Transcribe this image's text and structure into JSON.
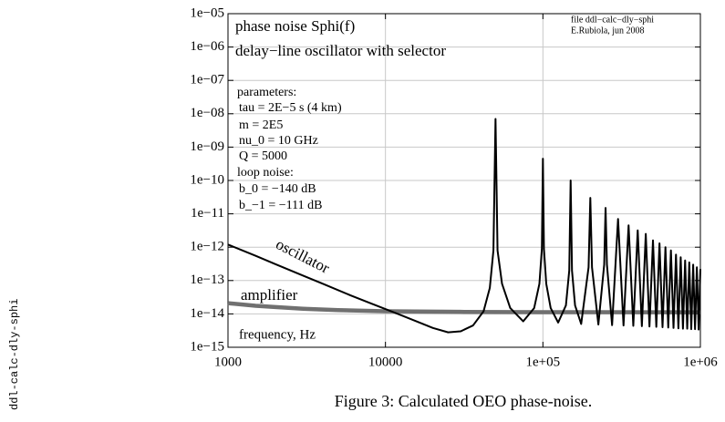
{
  "chart_data": {
    "type": "line",
    "xlog": true,
    "ylog": true,
    "grid": true,
    "xlim": [
      1000,
      1000000
    ],
    "ylim": [
      1e-15,
      1e-05
    ],
    "xticks": [
      1000,
      10000,
      {
        "value": 100000,
        "label": "1e+05"
      },
      {
        "value": 1000000,
        "label": "1e+06"
      }
    ],
    "yticks": [
      {
        "value": 1e-15,
        "label": "1e−15"
      },
      {
        "value": 1e-14,
        "label": "1e−14"
      },
      {
        "value": 1e-13,
        "label": "1e−13"
      },
      {
        "value": 1e-12,
        "label": "1e−12"
      },
      {
        "value": 1e-11,
        "label": "1e−11"
      },
      {
        "value": 1e-10,
        "label": "1e−10"
      },
      {
        "value": 1e-09,
        "label": "1e−09"
      },
      {
        "value": 1e-08,
        "label": "1e−08"
      },
      {
        "value": 1e-07,
        "label": "1e−07"
      },
      {
        "value": 1e-06,
        "label": "1e−06"
      },
      {
        "value": 1e-05,
        "label": "1e−05"
      }
    ],
    "annotations": [
      "phase noise   Sphi(f)",
      "delay−line oscillator with selector",
      "file ddl−calc−dly−sphi",
      "E.Rubiola, jun 2008",
      "parameters:",
      "tau = 2E−5 s (4 km)",
      "m = 2E5",
      "nu_0 = 10 GHz",
      "Q = 5000",
      "loop noise:",
      "b_0 = −140 dB",
      "b_−1 = −111 dB",
      "frequency, Hz"
    ],
    "caption": "Figure 3: Calculated OEO phase-noise.",
    "side_label": "ddl-calc-dly-sphi",
    "series": [
      {
        "name": "oscillator",
        "color": "#000000",
        "x": [
          1000,
          1500,
          2000,
          3000,
          4000,
          6000,
          8000,
          12000,
          16000,
          20000,
          25000,
          30000,
          36000,
          42000,
          46000,
          48500,
          50000,
          51500,
          55000,
          62000,
          75000,
          88000,
          95000,
          98500,
          100000,
          101500,
          105000,
          112000,
          125000,
          140000,
          147000,
          150000,
          153000,
          160000,
          175000,
          195000,
          200000,
          205000,
          225000,
          245000,
          250000,
          255000,
          275000,
          300000,
          325000,
          350000,
          375000,
          400000,
          425000,
          450000,
          475000,
          500000,
          525000,
          550000,
          575000,
          600000,
          625000,
          650000,
          675000,
          700000,
          725000,
          750000,
          775000,
          800000,
          825000,
          850000,
          875000,
          900000,
          925000,
          950000,
          975000,
          1000000
        ],
        "values": [
          1.2e-12,
          5.5e-13,
          3.1e-13,
          1.4e-13,
          8e-14,
          3.6e-14,
          2.1e-14,
          1e-14,
          5.8e-15,
          3.8e-15,
          2.8e-15,
          3e-15,
          4.5e-15,
          1.2e-14,
          6e-14,
          8e-13,
          7e-09,
          8e-13,
          8e-14,
          1.5e-14,
          6e-15,
          1.5e-14,
          8e-14,
          9e-13,
          4.5e-10,
          9e-13,
          8e-14,
          1.5e-14,
          5.5e-15,
          1.8e-14,
          2e-13,
          1e-10,
          2e-13,
          1.8e-14,
          5e-15,
          2.5e-13,
          3e-11,
          2.5e-13,
          4.8e-15,
          3e-13,
          1.5e-11,
          3e-13,
          4.6e-15,
          7e-12,
          4.5e-15,
          4.5e-12,
          4.4e-15,
          3.2e-12,
          4.3e-15,
          2.5e-12,
          4.2e-15,
          1.6e-12,
          4.1e-15,
          1.3e-12,
          4e-15,
          1e-12,
          3.9e-15,
          8e-13,
          3.8e-15,
          6e-13,
          3.7e-15,
          5e-13,
          3.6e-15,
          4e-13,
          3.6e-15,
          3.5e-13,
          3.5e-15,
          3e-13,
          3.5e-15,
          2.5e-13,
          3.4e-15,
          2.2e-13
        ]
      },
      {
        "name": "amplifier",
        "color": "#707070",
        "x": [
          1000,
          1500,
          2000,
          3000,
          5000,
          10000,
          30000,
          100000,
          1000000
        ],
        "values": [
          2.1e-14,
          1.75e-14,
          1.6e-14,
          1.43e-14,
          1.3e-14,
          1.2e-14,
          1.15e-14,
          1.13e-14,
          1.12e-14
        ]
      }
    ]
  }
}
